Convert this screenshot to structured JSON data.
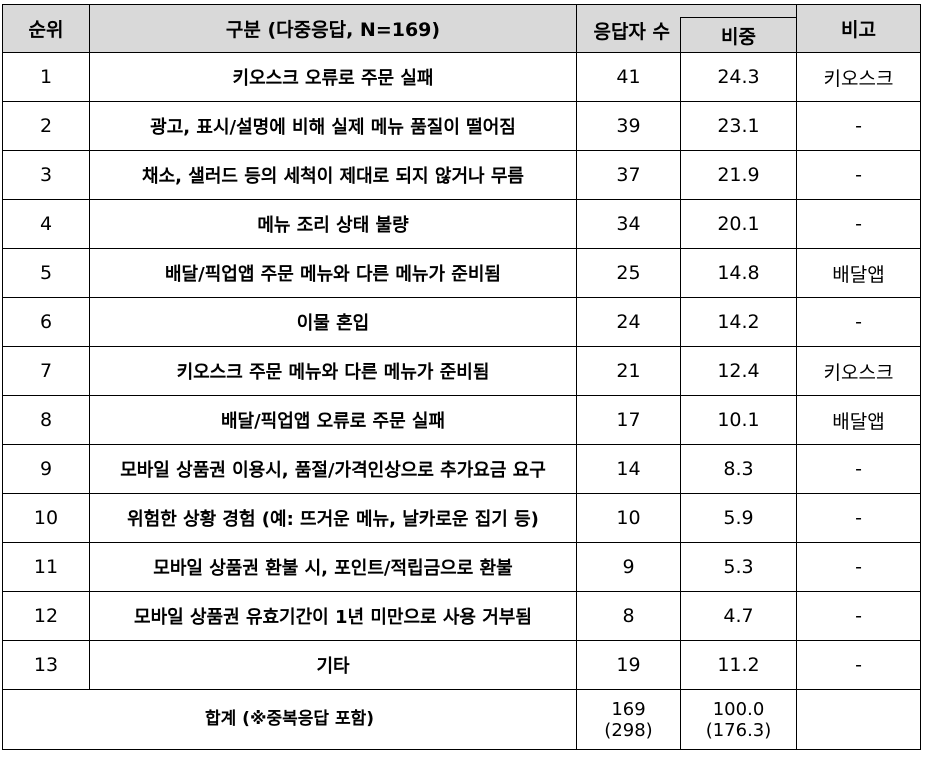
{
  "headers": {
    "rank": "순위",
    "category": "구분 (다중응답, N=169)",
    "respondents": "응답자 수",
    "ratio": "비중",
    "note": "비고"
  },
  "rows": [
    {
      "rank": "1",
      "category": "키오스크 오류로 주문 실패",
      "count": "41",
      "ratio": "24.3",
      "note": "키오스크"
    },
    {
      "rank": "2",
      "category": "광고, 표시/설명에 비해 실제 메뉴 품질이 떨어짐",
      "count": "39",
      "ratio": "23.1",
      "note": "-"
    },
    {
      "rank": "3",
      "category": "채소, 샐러드 등의 세척이 제대로 되지 않거나 무름",
      "count": "37",
      "ratio": "21.9",
      "note": "-"
    },
    {
      "rank": "4",
      "category": "메뉴 조리 상태 불량",
      "count": "34",
      "ratio": "20.1",
      "note": "-"
    },
    {
      "rank": "5",
      "category": "배달/픽업앱 주문 메뉴와 다른 메뉴가 준비됨",
      "count": "25",
      "ratio": "14.8",
      "note": "배달앱"
    },
    {
      "rank": "6",
      "category": "이물 혼입",
      "count": "24",
      "ratio": "14.2",
      "note": "-"
    },
    {
      "rank": "7",
      "category": "키오스크 주문 메뉴와 다른 메뉴가 준비됨",
      "count": "21",
      "ratio": "12.4",
      "note": "키오스크"
    },
    {
      "rank": "8",
      "category": "배달/픽업앱 오류로 주문 실패",
      "count": "17",
      "ratio": "10.1",
      "note": "배달앱"
    },
    {
      "rank": "9",
      "category": "모바일 상품권 이용시, 품절/가격인상으로 추가요금 요구",
      "count": "14",
      "ratio": "8.3",
      "note": "-"
    },
    {
      "rank": "10",
      "category": "위험한 상황 경험 (예: 뜨거운 메뉴, 날카로운 집기 등)",
      "count": "10",
      "ratio": "5.9",
      "note": "-"
    },
    {
      "rank": "11",
      "category": "모바일 상품권 환불 시, 포인트/적립금으로 환불",
      "count": "9",
      "ratio": "5.3",
      "note": "-"
    },
    {
      "rank": "12",
      "category": "모바일 상품권 유효기간이 1년 미만으로 사용 거부됨",
      "count": "8",
      "ratio": "4.7",
      "note": "-"
    },
    {
      "rank": "13",
      "category": "기타",
      "count": "19",
      "ratio": "11.2",
      "note": "-"
    }
  ],
  "total": {
    "label": "합계 (※중복응답 포함)",
    "count": "169",
    "count_dup": "(298)",
    "ratio": "100.0",
    "ratio_dup": "(176.3)",
    "note": ""
  }
}
